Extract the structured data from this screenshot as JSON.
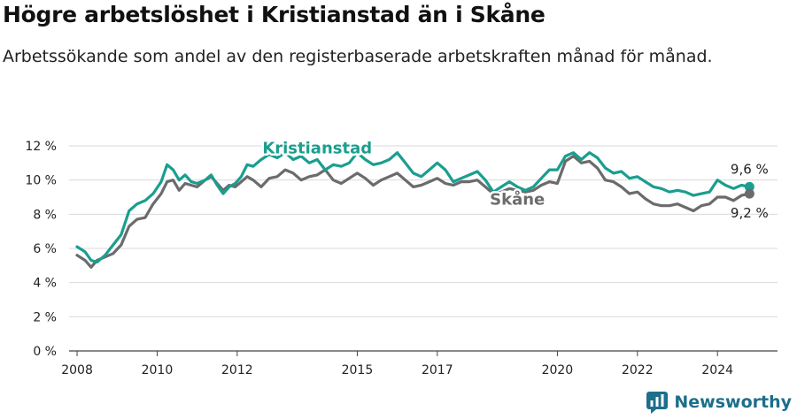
{
  "header": {
    "title": "Högre arbetslöshet i Kristianstad än i Skåne",
    "subtitle": "Arbetssökande som andel av den registerbaserade arbetskraften månad för månad."
  },
  "brand": {
    "name": "Newsworthy"
  },
  "colors": {
    "kristianstad": "#1a9e8f",
    "skane": "#6b6b6b",
    "grid": "#d9d9d9",
    "axis": "#444444"
  },
  "chart_data": {
    "type": "line",
    "title": "Högre arbetslöshet i Kristianstad än i Skåne",
    "subtitle": "Arbetssökande som andel av den registerbaserade arbetskraften månad för månad.",
    "xlabel": "",
    "ylabel": "",
    "ylim": [
      0,
      12
    ],
    "xlim": [
      2007.8,
      2025.5
    ],
    "y_ticks": [
      0,
      2,
      4,
      6,
      8,
      10,
      12
    ],
    "y_tick_labels": [
      "0 %",
      "2 %",
      "4 %",
      "6 %",
      "8 %",
      "10 %",
      "12 %"
    ],
    "x_ticks": [
      2008,
      2010,
      2012,
      2015,
      2017,
      2020,
      2022,
      2024
    ],
    "x_tick_labels": [
      "2008",
      "2010",
      "2012",
      "2015",
      "2017",
      "2020",
      "2022",
      "2024"
    ],
    "grid": "horizontal",
    "series": [
      {
        "name": "Kristianstad",
        "end_label": "9,6 %",
        "points": [
          [
            2008.0,
            6.1
          ],
          [
            2008.2,
            5.8
          ],
          [
            2008.35,
            5.3
          ],
          [
            2008.5,
            5.2
          ],
          [
            2008.7,
            5.6
          ],
          [
            2008.9,
            6.2
          ],
          [
            2009.1,
            6.8
          ],
          [
            2009.3,
            8.2
          ],
          [
            2009.5,
            8.6
          ],
          [
            2009.7,
            8.8
          ],
          [
            2009.9,
            9.2
          ],
          [
            2010.1,
            9.9
          ],
          [
            2010.25,
            10.9
          ],
          [
            2010.4,
            10.6
          ],
          [
            2010.55,
            10.0
          ],
          [
            2010.7,
            10.3
          ],
          [
            2010.85,
            9.9
          ],
          [
            2011.0,
            9.8
          ],
          [
            2011.2,
            10.0
          ],
          [
            2011.35,
            10.3
          ],
          [
            2011.5,
            9.7
          ],
          [
            2011.65,
            9.2
          ],
          [
            2011.8,
            9.6
          ],
          [
            2011.95,
            9.8
          ],
          [
            2012.1,
            10.2
          ],
          [
            2012.25,
            10.9
          ],
          [
            2012.4,
            10.8
          ],
          [
            2012.6,
            11.2
          ],
          [
            2012.8,
            11.5
          ],
          [
            2013.0,
            11.3
          ],
          [
            2013.2,
            11.6
          ],
          [
            2013.4,
            11.2
          ],
          [
            2013.6,
            11.4
          ],
          [
            2013.8,
            11.0
          ],
          [
            2014.0,
            11.2
          ],
          [
            2014.2,
            10.6
          ],
          [
            2014.4,
            10.9
          ],
          [
            2014.6,
            10.8
          ],
          [
            2014.8,
            11.0
          ],
          [
            2015.0,
            11.6
          ],
          [
            2015.2,
            11.2
          ],
          [
            2015.4,
            10.9
          ],
          [
            2015.6,
            11.0
          ],
          [
            2015.8,
            11.2
          ],
          [
            2016.0,
            11.6
          ],
          [
            2016.2,
            11.0
          ],
          [
            2016.4,
            10.4
          ],
          [
            2016.6,
            10.2
          ],
          [
            2016.8,
            10.6
          ],
          [
            2017.0,
            11.0
          ],
          [
            2017.2,
            10.6
          ],
          [
            2017.4,
            9.9
          ],
          [
            2017.6,
            10.1
          ],
          [
            2017.8,
            10.3
          ],
          [
            2018.0,
            10.5
          ],
          [
            2018.2,
            10.0
          ],
          [
            2018.4,
            9.3
          ],
          [
            2018.6,
            9.6
          ],
          [
            2018.8,
            9.9
          ],
          [
            2019.0,
            9.6
          ],
          [
            2019.2,
            9.4
          ],
          [
            2019.4,
            9.6
          ],
          [
            2019.6,
            10.1
          ],
          [
            2019.8,
            10.6
          ],
          [
            2020.0,
            10.6
          ],
          [
            2020.2,
            11.4
          ],
          [
            2020.4,
            11.6
          ],
          [
            2020.6,
            11.2
          ],
          [
            2020.8,
            11.6
          ],
          [
            2021.0,
            11.3
          ],
          [
            2021.2,
            10.7
          ],
          [
            2021.4,
            10.4
          ],
          [
            2021.6,
            10.5
          ],
          [
            2021.8,
            10.1
          ],
          [
            2022.0,
            10.2
          ],
          [
            2022.2,
            9.9
          ],
          [
            2022.4,
            9.6
          ],
          [
            2022.6,
            9.5
          ],
          [
            2022.8,
            9.3
          ],
          [
            2023.0,
            9.4
          ],
          [
            2023.2,
            9.3
          ],
          [
            2023.4,
            9.1
          ],
          [
            2023.6,
            9.2
          ],
          [
            2023.8,
            9.3
          ],
          [
            2024.0,
            10.0
          ],
          [
            2024.2,
            9.7
          ],
          [
            2024.4,
            9.5
          ],
          [
            2024.6,
            9.7
          ],
          [
            2024.8,
            9.6
          ]
        ]
      },
      {
        "name": "Skåne",
        "end_label": "9,2 %",
        "points": [
          [
            2008.0,
            5.6
          ],
          [
            2008.2,
            5.3
          ],
          [
            2008.35,
            4.9
          ],
          [
            2008.5,
            5.3
          ],
          [
            2008.7,
            5.5
          ],
          [
            2008.9,
            5.7
          ],
          [
            2009.1,
            6.2
          ],
          [
            2009.3,
            7.3
          ],
          [
            2009.5,
            7.7
          ],
          [
            2009.7,
            7.8
          ],
          [
            2009.9,
            8.6
          ],
          [
            2010.1,
            9.2
          ],
          [
            2010.25,
            9.9
          ],
          [
            2010.4,
            10.0
          ],
          [
            2010.55,
            9.4
          ],
          [
            2010.7,
            9.8
          ],
          [
            2010.85,
            9.7
          ],
          [
            2011.0,
            9.6
          ],
          [
            2011.2,
            10.0
          ],
          [
            2011.35,
            10.2
          ],
          [
            2011.5,
            9.8
          ],
          [
            2011.65,
            9.4
          ],
          [
            2011.8,
            9.7
          ],
          [
            2011.95,
            9.6
          ],
          [
            2012.1,
            9.9
          ],
          [
            2012.25,
            10.2
          ],
          [
            2012.4,
            10.0
          ],
          [
            2012.6,
            9.6
          ],
          [
            2012.8,
            10.1
          ],
          [
            2013.0,
            10.2
          ],
          [
            2013.2,
            10.6
          ],
          [
            2013.4,
            10.4
          ],
          [
            2013.6,
            10.0
          ],
          [
            2013.8,
            10.2
          ],
          [
            2014.0,
            10.3
          ],
          [
            2014.2,
            10.6
          ],
          [
            2014.4,
            10.0
          ],
          [
            2014.6,
            9.8
          ],
          [
            2014.8,
            10.1
          ],
          [
            2015.0,
            10.4
          ],
          [
            2015.2,
            10.1
          ],
          [
            2015.4,
            9.7
          ],
          [
            2015.6,
            10.0
          ],
          [
            2015.8,
            10.2
          ],
          [
            2016.0,
            10.4
          ],
          [
            2016.2,
            10.0
          ],
          [
            2016.4,
            9.6
          ],
          [
            2016.6,
            9.7
          ],
          [
            2016.8,
            9.9
          ],
          [
            2017.0,
            10.1
          ],
          [
            2017.2,
            9.8
          ],
          [
            2017.4,
            9.7
          ],
          [
            2017.6,
            9.9
          ],
          [
            2017.8,
            9.9
          ],
          [
            2018.0,
            10.0
          ],
          [
            2018.2,
            9.6
          ],
          [
            2018.4,
            9.2
          ],
          [
            2018.6,
            9.3
          ],
          [
            2018.8,
            9.5
          ],
          [
            2019.0,
            9.4
          ],
          [
            2019.2,
            9.3
          ],
          [
            2019.4,
            9.4
          ],
          [
            2019.6,
            9.7
          ],
          [
            2019.8,
            9.9
          ],
          [
            2020.0,
            9.8
          ],
          [
            2020.2,
            11.1
          ],
          [
            2020.4,
            11.4
          ],
          [
            2020.6,
            11.0
          ],
          [
            2020.8,
            11.1
          ],
          [
            2021.0,
            10.7
          ],
          [
            2021.2,
            10.0
          ],
          [
            2021.4,
            9.9
          ],
          [
            2021.6,
            9.6
          ],
          [
            2021.8,
            9.2
          ],
          [
            2022.0,
            9.3
          ],
          [
            2022.2,
            8.9
          ],
          [
            2022.4,
            8.6
          ],
          [
            2022.6,
            8.5
          ],
          [
            2022.8,
            8.5
          ],
          [
            2023.0,
            8.6
          ],
          [
            2023.2,
            8.4
          ],
          [
            2023.4,
            8.2
          ],
          [
            2023.6,
            8.5
          ],
          [
            2023.8,
            8.6
          ],
          [
            2024.0,
            9.0
          ],
          [
            2024.2,
            9.0
          ],
          [
            2024.4,
            8.8
          ],
          [
            2024.6,
            9.1
          ],
          [
            2024.8,
            9.2
          ]
        ]
      }
    ]
  }
}
